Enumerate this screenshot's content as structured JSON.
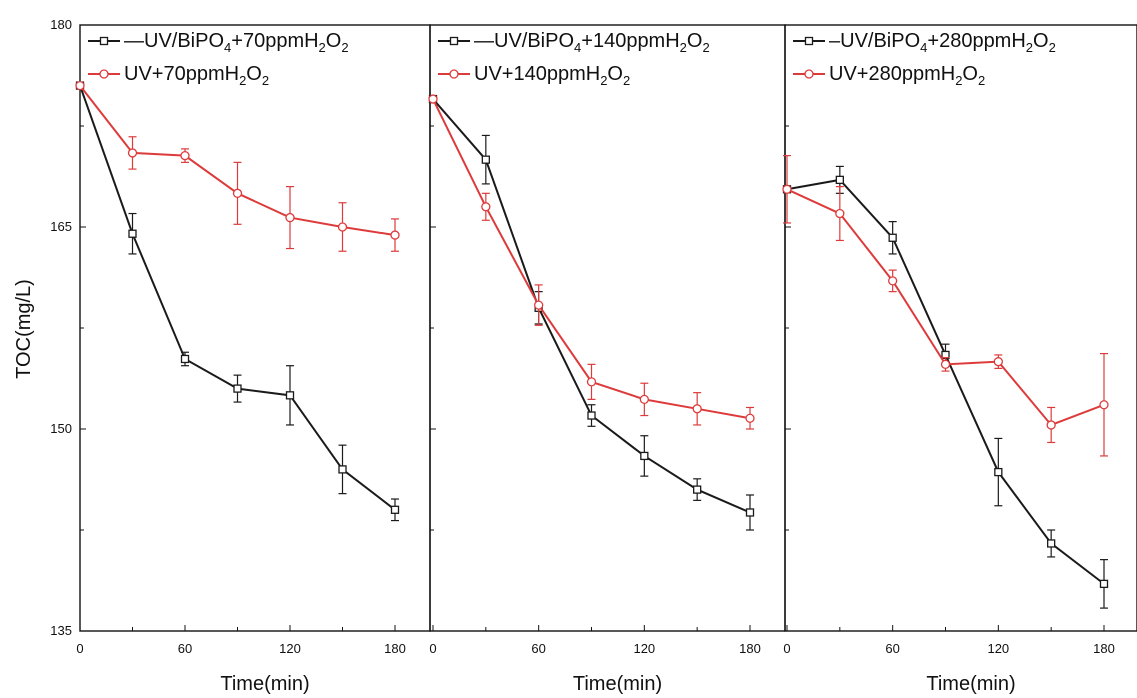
{
  "colors": {
    "series_1": "#1a1a1a",
    "series_2": "#dd3b3b"
  },
  "chart_data": [
    {
      "type": "line",
      "x": [
        0,
        30,
        60,
        90,
        120,
        150,
        180
      ],
      "x_ticks": [
        "0",
        "60",
        "120",
        "180"
      ],
      "xlabel": "Time(min)",
      "ylabel": "TOC(mg/L)",
      "y_ticks": [
        "135",
        "150",
        "165",
        "180"
      ],
      "xlim": [
        0,
        190
      ],
      "ylim": [
        135,
        180
      ],
      "legend_position": "top-right",
      "series": [
        {
          "name": "—UV/BiPO4+70ppmH2O2",
          "legend_base": "—UV/BiPO",
          "legend_sub1": "4",
          "legend_mid": "+70ppmH",
          "legend_sub2": "2",
          "legend_o": "O",
          "legend_sub3": "2",
          "values": [
            175.5,
            164.5,
            155.2,
            153.0,
            152.5,
            147.0,
            144.0
          ],
          "err": [
            0,
            1.5,
            0.5,
            1.0,
            2.2,
            1.8,
            0.8
          ]
        },
        {
          "name": "UV+70ppmH2O2",
          "legend_base": "UV+70ppmH",
          "legend_sub1": "",
          "legend_mid": "",
          "legend_sub2": "2",
          "legend_o": "O",
          "legend_sub3": "2",
          "values": [
            175.5,
            170.5,
            170.3,
            167.5,
            165.7,
            165.0,
            164.4
          ],
          "err": [
            0,
            1.2,
            0.5,
            2.3,
            2.3,
            1.8,
            1.2
          ]
        }
      ]
    },
    {
      "type": "line",
      "x": [
        0,
        30,
        60,
        90,
        120,
        150,
        180
      ],
      "x_ticks": [
        "0",
        "60",
        "120",
        "180"
      ],
      "xlabel": "Time(min)",
      "y_ticks": [
        "135",
        "150",
        "165",
        "180"
      ],
      "xlim": [
        0,
        190
      ],
      "ylim": [
        135,
        180
      ],
      "legend_position": "top-right",
      "series": [
        {
          "name": "—UV/BiPO4+140ppmH2O2",
          "legend_base": "—UV/BiPO",
          "legend_sub1": "4",
          "legend_mid": "+140ppmH",
          "legend_sub2": "2",
          "legend_o": "O",
          "legend_sub3": "2",
          "values": [
            174.5,
            170.0,
            159.0,
            151.0,
            148.0,
            145.5,
            143.8
          ],
          "err": [
            0,
            1.8,
            1.2,
            0.8,
            1.5,
            0.8,
            1.3
          ]
        },
        {
          "name": "UV+140ppmH2O2",
          "legend_base": "UV+140ppmH",
          "legend_sub1": "",
          "legend_mid": "",
          "legend_sub2": "2",
          "legend_o": "O",
          "legend_sub3": "2",
          "values": [
            174.5,
            166.5,
            159.2,
            153.5,
            152.2,
            151.5,
            150.8
          ],
          "err": [
            0,
            1.0,
            1.5,
            1.3,
            1.2,
            1.2,
            0.8
          ]
        }
      ]
    },
    {
      "type": "line",
      "x": [
        0,
        30,
        60,
        90,
        120,
        150,
        180
      ],
      "x_ticks": [
        "0",
        "60",
        "120",
        "180"
      ],
      "xlabel": "Time(min)",
      "y_ticks": [
        "135",
        "150",
        "165",
        "180"
      ],
      "xlim": [
        0,
        190
      ],
      "ylim": [
        135,
        180
      ],
      "legend_position": "top-right",
      "series": [
        {
          "name": "–UV/BiPO4+280ppmH2O2",
          "legend_base": "–UV/BiPO",
          "legend_sub1": "4",
          "legend_mid": "+280ppmH",
          "legend_sub2": "2",
          "legend_o": "O",
          "legend_sub3": "2",
          "values": [
            167.8,
            168.5,
            164.2,
            155.5,
            146.8,
            141.5,
            138.5
          ],
          "err": [
            0,
            1.0,
            1.2,
            0.8,
            2.5,
            1.0,
            1.8
          ]
        },
        {
          "name": "UV+280ppmH2O2",
          "legend_base": "UV+280ppmH",
          "legend_sub1": "",
          "legend_mid": "",
          "legend_sub2": "2",
          "legend_o": "O",
          "legend_sub3": "2",
          "values": [
            167.8,
            166.0,
            161.0,
            154.8,
            155.0,
            150.3,
            151.8
          ],
          "err": [
            2.5,
            2.0,
            0.8,
            0.5,
            0.5,
            1.3,
            3.8
          ]
        }
      ]
    }
  ]
}
